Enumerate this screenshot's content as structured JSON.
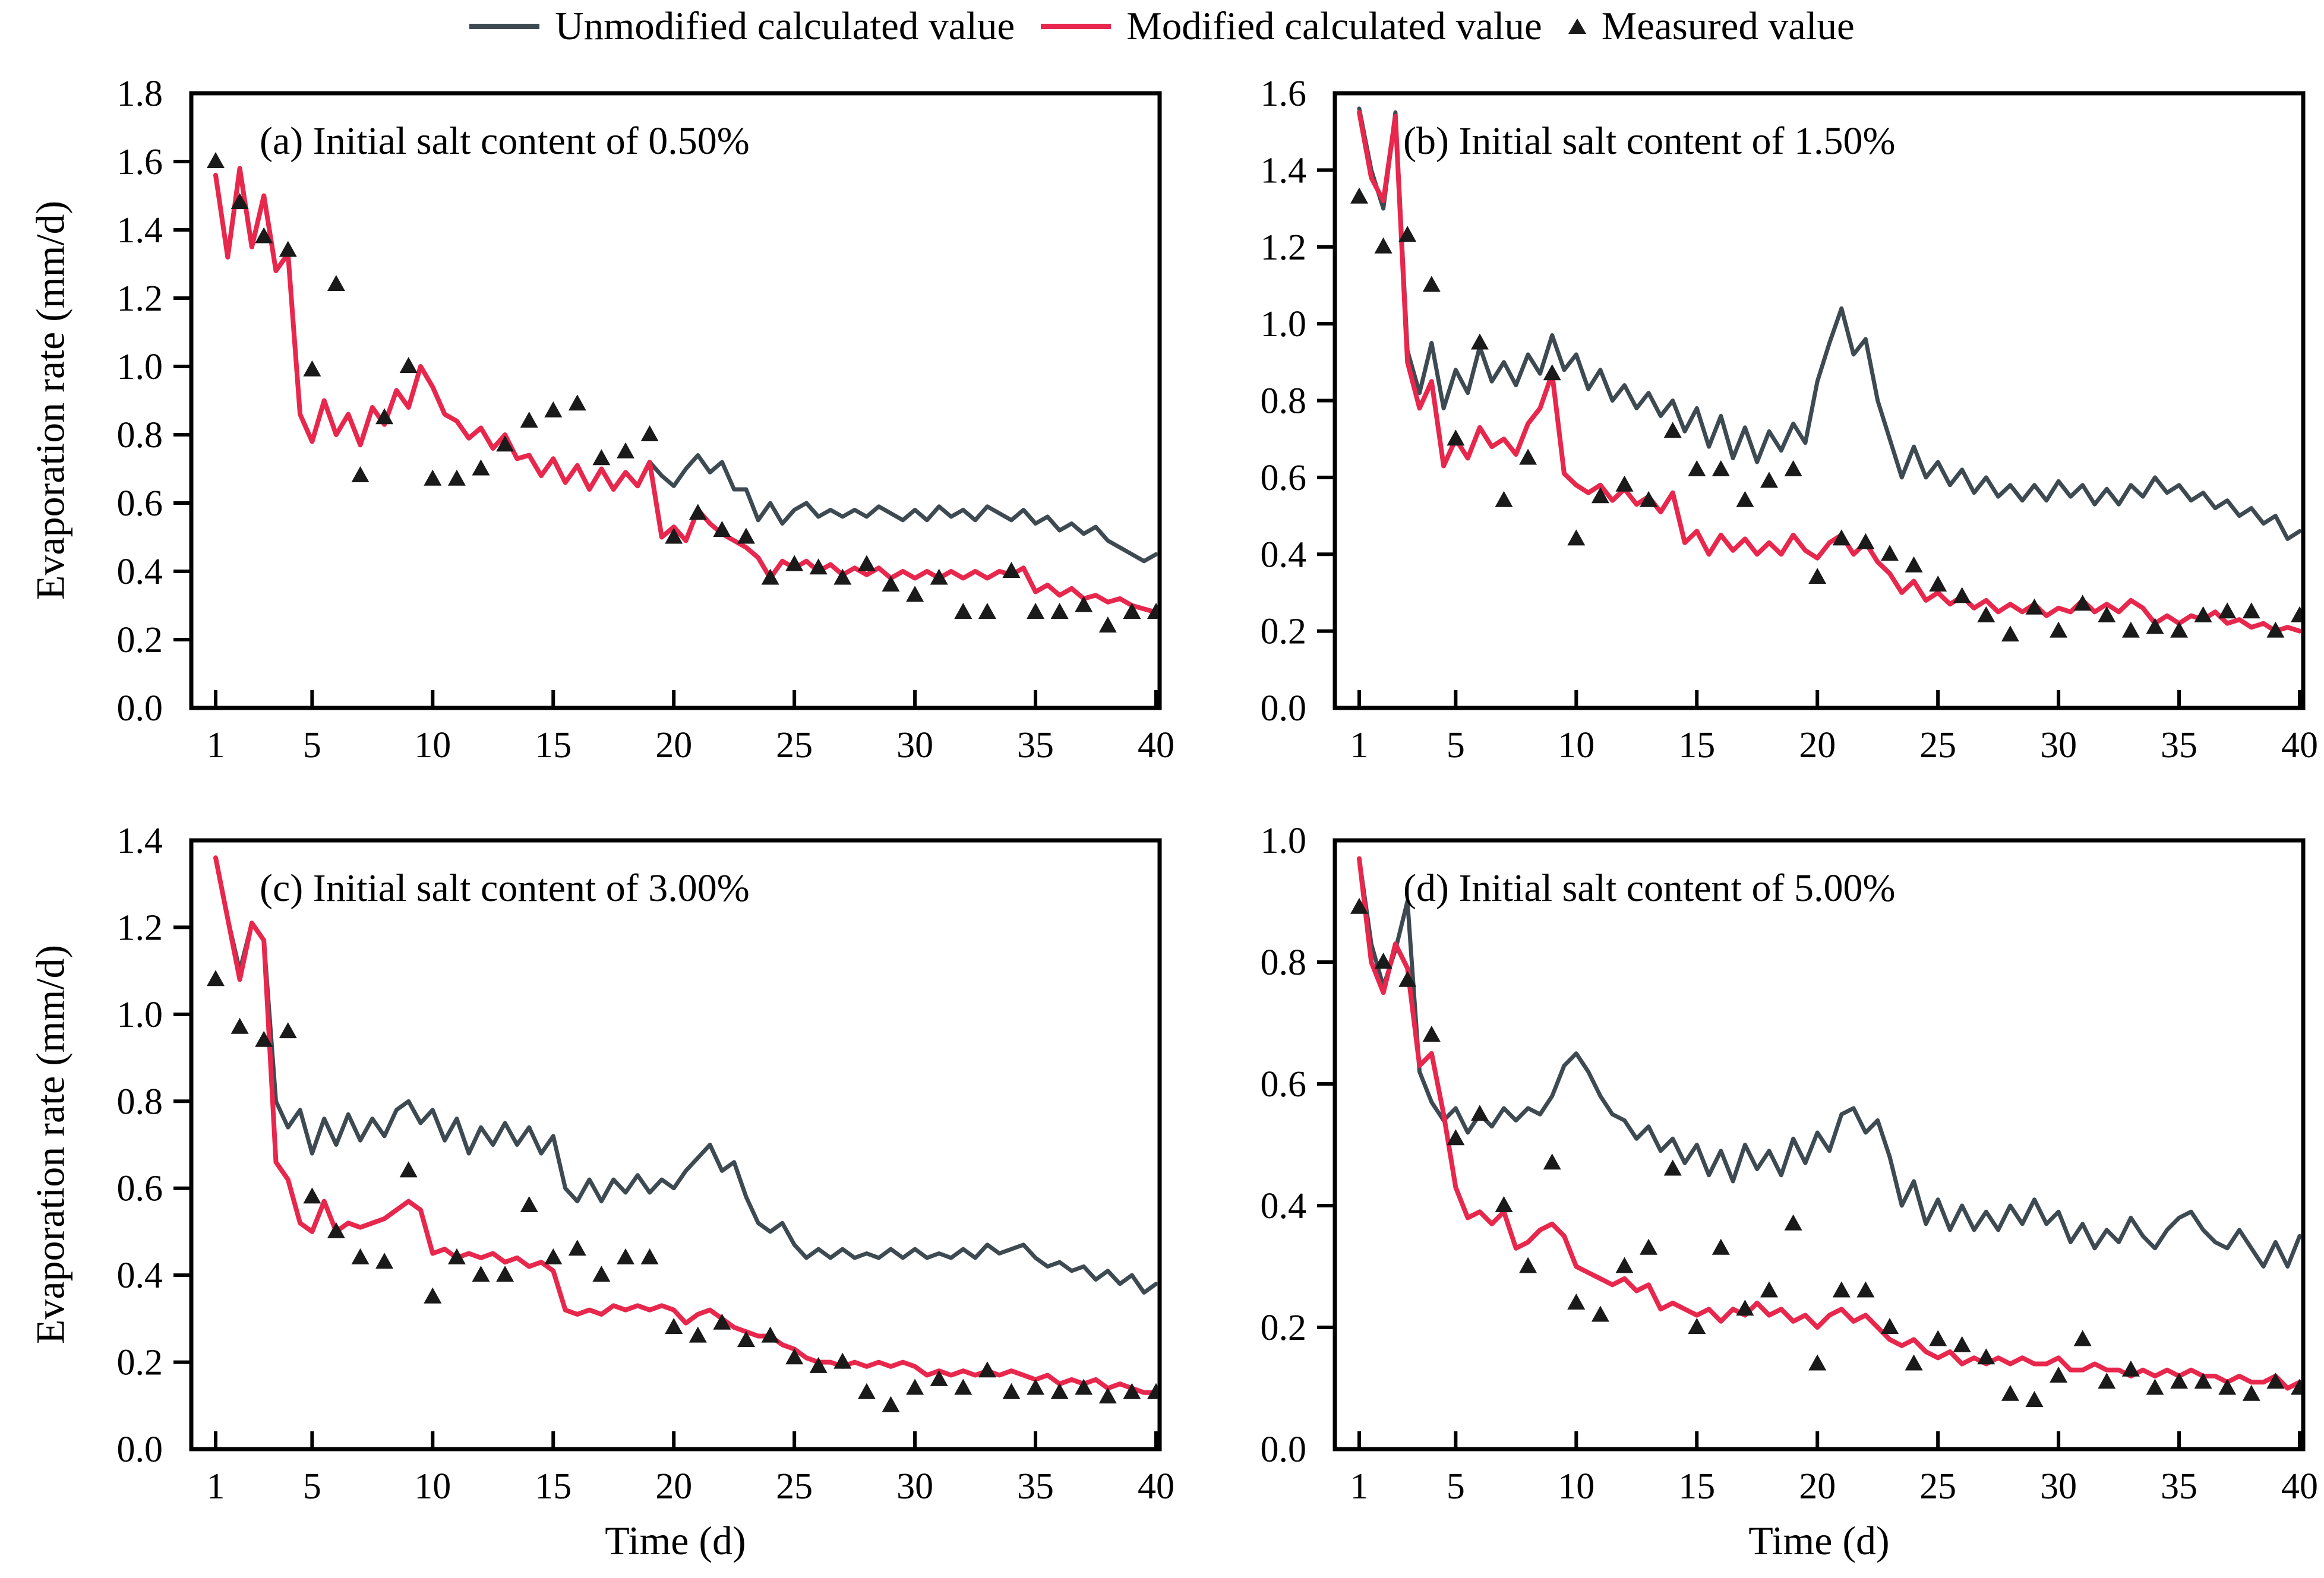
{
  "legend": {
    "position": "top",
    "items": [
      {
        "label": "Unmodified calculated value",
        "swatch": "line",
        "color": "#3e4a52"
      },
      {
        "label": "Modified calculated value",
        "swatch": "line",
        "color": "#e8274d"
      },
      {
        "label": "Measured value",
        "swatch": "triangle",
        "color": "#1a1a1a"
      }
    ]
  },
  "axes": {
    "y_label": "Evaporation rate (mm/d)",
    "x_label": "Time (d)"
  },
  "colors": {
    "unmodified": "#3e4a52",
    "modified": "#e8274d",
    "measured": "#1a1a1a",
    "frame": "#000000",
    "background": "#ffffff"
  },
  "chart_data": [
    {
      "id": "a",
      "type": "line",
      "title": "(a) Initial salt content of 0.50%",
      "xlabel": "",
      "ylabel": "Evaporation rate (mm/d)",
      "xlim": [
        0,
        40.3
      ],
      "ylim": [
        0,
        1.8
      ],
      "ytick_step": 0.2,
      "x_ticks": [
        1,
        5,
        10,
        15,
        20,
        25,
        30,
        35,
        40
      ],
      "grid": false,
      "series": [
        {
          "name": "Unmodified calculated value",
          "type": "line",
          "color": "#3e4a52",
          "x0": 1,
          "dx": 0.5,
          "values": [
            1.56,
            1.32,
            1.58,
            1.35,
            1.5,
            1.28,
            1.33,
            0.86,
            0.78,
            0.9,
            0.8,
            0.86,
            0.77,
            0.88,
            0.83,
            0.93,
            0.88,
            1.0,
            0.94,
            0.86,
            0.84,
            0.79,
            0.82,
            0.76,
            0.8,
            0.73,
            0.74,
            0.68,
            0.73,
            0.66,
            0.71,
            0.64,
            0.7,
            0.64,
            0.69,
            0.65,
            0.72,
            0.68,
            0.65,
            0.7,
            0.74,
            0.69,
            0.72,
            0.64,
            0.64,
            0.55,
            0.6,
            0.54,
            0.58,
            0.6,
            0.56,
            0.58,
            0.56,
            0.58,
            0.56,
            0.59,
            0.57,
            0.55,
            0.58,
            0.55,
            0.59,
            0.56,
            0.58,
            0.55,
            0.59,
            0.57,
            0.55,
            0.58,
            0.54,
            0.56,
            0.52,
            0.54,
            0.51,
            0.53,
            0.49,
            0.47,
            0.45,
            0.43,
            0.45
          ]
        },
        {
          "name": "Modified calculated value",
          "type": "line",
          "color": "#e8274d",
          "x0": 1,
          "dx": 0.5,
          "values": [
            1.56,
            1.32,
            1.58,
            1.35,
            1.5,
            1.28,
            1.33,
            0.86,
            0.78,
            0.9,
            0.8,
            0.86,
            0.77,
            0.88,
            0.83,
            0.93,
            0.88,
            1.0,
            0.94,
            0.86,
            0.84,
            0.79,
            0.82,
            0.76,
            0.8,
            0.73,
            0.74,
            0.68,
            0.73,
            0.66,
            0.71,
            0.64,
            0.7,
            0.64,
            0.69,
            0.65,
            0.72,
            0.5,
            0.53,
            0.49,
            0.58,
            0.54,
            0.51,
            0.49,
            0.47,
            0.44,
            0.38,
            0.43,
            0.41,
            0.43,
            0.4,
            0.42,
            0.39,
            0.41,
            0.39,
            0.41,
            0.38,
            0.4,
            0.38,
            0.4,
            0.38,
            0.4,
            0.38,
            0.4,
            0.38,
            0.4,
            0.39,
            0.41,
            0.34,
            0.36,
            0.33,
            0.35,
            0.32,
            0.33,
            0.31,
            0.32,
            0.3,
            0.29,
            0.28
          ]
        },
        {
          "name": "Measured value",
          "type": "scatter",
          "marker": "triangle",
          "color": "#1a1a1a",
          "x0": 1,
          "dx": 1,
          "values": [
            1.6,
            1.48,
            1.38,
            1.34,
            0.99,
            1.24,
            0.68,
            0.85,
            1.0,
            0.67,
            0.67,
            0.7,
            0.77,
            0.84,
            0.87,
            0.89,
            0.73,
            0.75,
            0.8,
            0.5,
            0.57,
            0.52,
            0.5,
            0.38,
            0.42,
            0.41,
            0.38,
            0.42,
            0.36,
            0.33,
            0.38,
            0.28,
            0.28,
            0.4,
            0.28,
            0.28,
            0.3,
            0.24,
            0.28,
            0.28
          ]
        }
      ]
    },
    {
      "id": "b",
      "type": "line",
      "title": "(b) Initial salt content of 1.50%",
      "xlabel": "",
      "ylabel": "",
      "xlim": [
        0,
        40.3
      ],
      "ylim": [
        0,
        1.6
      ],
      "ytick_step": 0.2,
      "x_ticks": [
        1,
        5,
        10,
        15,
        20,
        25,
        30,
        35,
        40
      ],
      "grid": false,
      "series": [
        {
          "name": "Unmodified calculated value",
          "type": "line",
          "color": "#3e4a52",
          "x0": 1,
          "dx": 0.5,
          "values": [
            1.56,
            1.4,
            1.3,
            1.55,
            0.93,
            0.82,
            0.95,
            0.78,
            0.88,
            0.82,
            0.94,
            0.85,
            0.9,
            0.84,
            0.92,
            0.87,
            0.97,
            0.88,
            0.92,
            0.83,
            0.88,
            0.8,
            0.84,
            0.78,
            0.82,
            0.76,
            0.8,
            0.72,
            0.78,
            0.68,
            0.76,
            0.65,
            0.73,
            0.64,
            0.72,
            0.67,
            0.74,
            0.69,
            0.85,
            0.95,
            1.04,
            0.92,
            0.96,
            0.8,
            0.7,
            0.6,
            0.68,
            0.6,
            0.64,
            0.58,
            0.62,
            0.56,
            0.6,
            0.55,
            0.58,
            0.54,
            0.58,
            0.54,
            0.59,
            0.55,
            0.58,
            0.53,
            0.57,
            0.53,
            0.58,
            0.55,
            0.6,
            0.56,
            0.58,
            0.54,
            0.56,
            0.52,
            0.54,
            0.5,
            0.52,
            0.48,
            0.5,
            0.44,
            0.46
          ]
        },
        {
          "name": "Modified calculated value",
          "type": "line",
          "color": "#e8274d",
          "x0": 1,
          "dx": 0.5,
          "values": [
            1.55,
            1.38,
            1.32,
            1.54,
            0.9,
            0.78,
            0.85,
            0.63,
            0.7,
            0.65,
            0.73,
            0.68,
            0.7,
            0.66,
            0.74,
            0.78,
            0.87,
            0.61,
            0.58,
            0.56,
            0.58,
            0.54,
            0.57,
            0.53,
            0.55,
            0.51,
            0.56,
            0.43,
            0.46,
            0.4,
            0.45,
            0.41,
            0.44,
            0.4,
            0.43,
            0.4,
            0.45,
            0.41,
            0.39,
            0.43,
            0.45,
            0.4,
            0.43,
            0.38,
            0.35,
            0.3,
            0.33,
            0.28,
            0.3,
            0.27,
            0.29,
            0.26,
            0.28,
            0.25,
            0.27,
            0.25,
            0.27,
            0.24,
            0.26,
            0.25,
            0.28,
            0.25,
            0.27,
            0.25,
            0.28,
            0.26,
            0.22,
            0.24,
            0.22,
            0.24,
            0.23,
            0.25,
            0.22,
            0.23,
            0.21,
            0.22,
            0.2,
            0.21,
            0.2
          ]
        },
        {
          "name": "Measured value",
          "type": "scatter",
          "marker": "triangle",
          "color": "#1a1a1a",
          "x0": 1,
          "dx": 1,
          "values": [
            1.33,
            1.2,
            1.23,
            1.1,
            0.7,
            0.95,
            0.54,
            0.65,
            0.87,
            0.44,
            0.55,
            0.58,
            0.54,
            0.72,
            0.62,
            0.62,
            0.54,
            0.59,
            0.62,
            0.34,
            0.44,
            0.43,
            0.4,
            0.37,
            0.32,
            0.29,
            0.24,
            0.19,
            0.26,
            0.2,
            0.27,
            0.24,
            0.2,
            0.21,
            0.2,
            0.24,
            0.25,
            0.25,
            0.2,
            0.24
          ]
        }
      ]
    },
    {
      "id": "c",
      "type": "line",
      "title": "(c) Initial salt content of 3.00%",
      "xlabel": "Time (d)",
      "ylabel": "Evaporation rate (mm/d)",
      "xlim": [
        0,
        40.3
      ],
      "ylim": [
        0,
        1.4
      ],
      "ytick_step": 0.2,
      "x_ticks": [
        1,
        5,
        10,
        15,
        20,
        25,
        30,
        35,
        40
      ],
      "grid": false,
      "series": [
        {
          "name": "Unmodified calculated value",
          "type": "line",
          "color": "#3e4a52",
          "x0": 1,
          "dx": 0.5,
          "values": [
            1.36,
            1.22,
            1.1,
            1.21,
            1.17,
            0.8,
            0.74,
            0.78,
            0.68,
            0.76,
            0.7,
            0.77,
            0.71,
            0.76,
            0.72,
            0.78,
            0.8,
            0.75,
            0.78,
            0.71,
            0.76,
            0.68,
            0.74,
            0.7,
            0.75,
            0.7,
            0.74,
            0.68,
            0.72,
            0.6,
            0.57,
            0.62,
            0.57,
            0.62,
            0.59,
            0.63,
            0.59,
            0.62,
            0.6,
            0.64,
            0.67,
            0.7,
            0.64,
            0.66,
            0.58,
            0.52,
            0.5,
            0.52,
            0.47,
            0.44,
            0.46,
            0.44,
            0.46,
            0.44,
            0.45,
            0.44,
            0.46,
            0.44,
            0.46,
            0.44,
            0.45,
            0.44,
            0.46,
            0.44,
            0.47,
            0.45,
            0.46,
            0.47,
            0.44,
            0.42,
            0.43,
            0.41,
            0.42,
            0.39,
            0.41,
            0.38,
            0.4,
            0.36,
            0.38
          ]
        },
        {
          "name": "Modified calculated value",
          "type": "line",
          "color": "#e8274d",
          "x0": 1,
          "dx": 0.5,
          "values": [
            1.36,
            1.22,
            1.08,
            1.21,
            1.17,
            0.66,
            0.62,
            0.52,
            0.5,
            0.57,
            0.5,
            0.52,
            0.51,
            0.52,
            0.53,
            0.55,
            0.57,
            0.55,
            0.45,
            0.46,
            0.44,
            0.45,
            0.44,
            0.45,
            0.43,
            0.44,
            0.42,
            0.43,
            0.41,
            0.32,
            0.31,
            0.32,
            0.31,
            0.33,
            0.32,
            0.33,
            0.32,
            0.33,
            0.32,
            0.29,
            0.31,
            0.32,
            0.3,
            0.28,
            0.27,
            0.26,
            0.26,
            0.24,
            0.23,
            0.21,
            0.2,
            0.2,
            0.19,
            0.2,
            0.19,
            0.2,
            0.19,
            0.2,
            0.19,
            0.17,
            0.18,
            0.17,
            0.18,
            0.17,
            0.18,
            0.17,
            0.18,
            0.17,
            0.16,
            0.17,
            0.15,
            0.16,
            0.15,
            0.16,
            0.14,
            0.15,
            0.14,
            0.13,
            0.13
          ]
        },
        {
          "name": "Measured value",
          "type": "scatter",
          "marker": "triangle",
          "color": "#1a1a1a",
          "x0": 1,
          "dx": 1,
          "values": [
            1.08,
            0.97,
            0.94,
            0.96,
            0.58,
            0.5,
            0.44,
            0.43,
            0.64,
            0.35,
            0.44,
            0.4,
            0.4,
            0.56,
            0.44,
            0.46,
            0.4,
            0.44,
            0.44,
            0.28,
            0.26,
            0.29,
            0.25,
            0.26,
            0.21,
            0.19,
            0.2,
            0.13,
            0.1,
            0.14,
            0.16,
            0.14,
            0.18,
            0.13,
            0.14,
            0.13,
            0.14,
            0.12,
            0.13,
            0.13
          ]
        }
      ]
    },
    {
      "id": "d",
      "type": "line",
      "title": "(d) Initial salt content of 5.00%",
      "xlabel": "Time (d)",
      "ylabel": "",
      "xlim": [
        0,
        40.3
      ],
      "ylim": [
        0,
        1.0
      ],
      "ytick_step": 0.2,
      "x_ticks": [
        1,
        5,
        10,
        15,
        20,
        25,
        30,
        35,
        40
      ],
      "grid": false,
      "series": [
        {
          "name": "Unmodified calculated value",
          "type": "line",
          "color": "#3e4a52",
          "x0": 1,
          "dx": 0.5,
          "values": [
            0.97,
            0.83,
            0.76,
            0.82,
            0.9,
            0.62,
            0.57,
            0.54,
            0.56,
            0.52,
            0.55,
            0.53,
            0.56,
            0.54,
            0.56,
            0.55,
            0.58,
            0.63,
            0.65,
            0.62,
            0.58,
            0.55,
            0.54,
            0.51,
            0.53,
            0.49,
            0.51,
            0.47,
            0.5,
            0.45,
            0.49,
            0.44,
            0.5,
            0.46,
            0.49,
            0.45,
            0.51,
            0.47,
            0.52,
            0.49,
            0.55,
            0.56,
            0.52,
            0.54,
            0.48,
            0.4,
            0.44,
            0.37,
            0.41,
            0.36,
            0.4,
            0.36,
            0.39,
            0.36,
            0.4,
            0.37,
            0.41,
            0.37,
            0.39,
            0.34,
            0.37,
            0.33,
            0.36,
            0.34,
            0.38,
            0.35,
            0.33,
            0.36,
            0.38,
            0.39,
            0.36,
            0.34,
            0.33,
            0.36,
            0.33,
            0.3,
            0.34,
            0.3,
            0.35
          ]
        },
        {
          "name": "Modified calculated value",
          "type": "line",
          "color": "#e8274d",
          "x0": 1,
          "dx": 0.5,
          "values": [
            0.97,
            0.8,
            0.75,
            0.83,
            0.79,
            0.63,
            0.65,
            0.55,
            0.43,
            0.38,
            0.39,
            0.37,
            0.39,
            0.33,
            0.34,
            0.36,
            0.37,
            0.35,
            0.3,
            0.29,
            0.28,
            0.27,
            0.28,
            0.26,
            0.27,
            0.23,
            0.24,
            0.23,
            0.22,
            0.23,
            0.21,
            0.23,
            0.22,
            0.24,
            0.22,
            0.23,
            0.21,
            0.22,
            0.2,
            0.22,
            0.23,
            0.21,
            0.22,
            0.2,
            0.18,
            0.17,
            0.18,
            0.16,
            0.15,
            0.16,
            0.14,
            0.15,
            0.14,
            0.15,
            0.14,
            0.15,
            0.14,
            0.14,
            0.15,
            0.13,
            0.13,
            0.14,
            0.13,
            0.13,
            0.12,
            0.13,
            0.12,
            0.13,
            0.12,
            0.13,
            0.12,
            0.12,
            0.11,
            0.12,
            0.11,
            0.11,
            0.12,
            0.1,
            0.11
          ]
        },
        {
          "name": "Measured value",
          "type": "scatter",
          "marker": "triangle",
          "color": "#1a1a1a",
          "x0": 1,
          "dx": 1,
          "values": [
            0.89,
            0.8,
            0.77,
            0.68,
            0.51,
            0.55,
            0.4,
            0.3,
            0.47,
            0.24,
            0.22,
            0.3,
            0.33,
            0.46,
            0.2,
            0.33,
            0.23,
            0.26,
            0.37,
            0.14,
            0.26,
            0.26,
            0.2,
            0.14,
            0.18,
            0.17,
            0.15,
            0.09,
            0.08,
            0.12,
            0.18,
            0.11,
            0.13,
            0.1,
            0.11,
            0.11,
            0.1,
            0.09,
            0.11,
            0.1
          ]
        }
      ]
    }
  ]
}
